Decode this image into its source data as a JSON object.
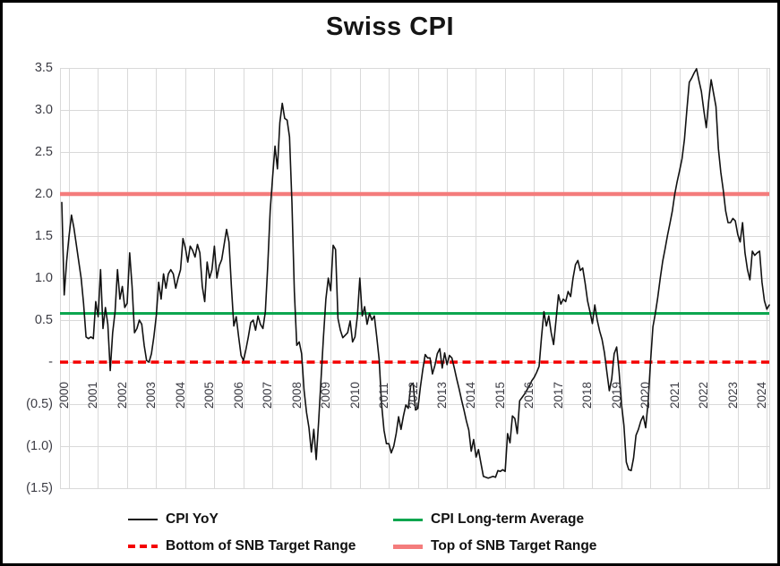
{
  "title": "Swiss CPI",
  "colors": {
    "cpi_yoy": "#121212",
    "long_term_average": "#0ca64f",
    "snb_bottom": "#f40000",
    "snb_top": "#f47c7c",
    "gridline": "#d9d9d9",
    "axis_text": "#3c3c44",
    "title_text": "#151515"
  },
  "y_axis": {
    "tick_labels": [
      "3.5",
      "3.0",
      "2.5",
      "2.0",
      "1.5",
      "1.0",
      "0.5",
      "-",
      "(0.5)",
      "(1.0)",
      "(1.5)"
    ],
    "tick_values": [
      3.5,
      3.0,
      2.5,
      2.0,
      1.5,
      1.0,
      0.5,
      0.0,
      -0.5,
      -1.0,
      -1.5
    ],
    "format": "accounting"
  },
  "x_axis": {
    "tick_labels": [
      "2000",
      "2001",
      "2002",
      "2003",
      "2004",
      "2005",
      "2006",
      "2007",
      "2008",
      "2009",
      "2010",
      "2011",
      "2012",
      "2013",
      "2014",
      "2015",
      "2016",
      "2017",
      "2018",
      "2019",
      "2020",
      "2021",
      "2022",
      "2023",
      "2024"
    ]
  },
  "legend": {
    "items": [
      {
        "label": "CPI YoY",
        "series": "cpi_yoy",
        "style": "thin-solid"
      },
      {
        "label": "CPI Long-term Average",
        "series": "long_term_average",
        "style": "solid"
      },
      {
        "label": "Bottom of SNB Target Range",
        "series": "snb_bottom",
        "style": "dashed"
      },
      {
        "label": "Top of SNB Target Range",
        "series": "snb_top",
        "style": "thick-solid"
      }
    ]
  },
  "chart_data": {
    "type": "line",
    "title": "Swiss CPI",
    "xlabel": "",
    "ylabel": "",
    "ylim": [
      -1.5,
      3.5
    ],
    "y_tick_step": 0.5,
    "grid": true,
    "legend_position": "bottom",
    "x": {
      "start": "2000-01",
      "end": "2024-05",
      "frequency": "monthly"
    },
    "x_tick_labels_years": [
      2000,
      2001,
      2002,
      2003,
      2004,
      2005,
      2006,
      2007,
      2008,
      2009,
      2010,
      2011,
      2012,
      2013,
      2014,
      2015,
      2016,
      2017,
      2018,
      2019,
      2020,
      2021,
      2022,
      2023,
      2024
    ],
    "series": [
      {
        "name": "CPI YoY",
        "type": "line",
        "color": "#121212",
        "values": [
          1.9,
          0.8,
          1.2,
          1.5,
          1.75,
          1.6,
          1.4,
          1.2,
          1.0,
          0.7,
          0.3,
          0.28,
          0.3,
          0.28,
          0.72,
          0.54,
          1.1,
          0.4,
          0.65,
          0.45,
          -0.1,
          0.35,
          0.6,
          1.1,
          0.75,
          0.9,
          0.65,
          0.7,
          1.3,
          0.9,
          0.35,
          0.4,
          0.5,
          0.45,
          0.2,
          0.02,
          0.0,
          0.1,
          0.3,
          0.55,
          0.95,
          0.75,
          1.05,
          0.88,
          1.05,
          1.1,
          1.05,
          0.88,
          1.0,
          1.1,
          1.47,
          1.36,
          1.19,
          1.38,
          1.33,
          1.25,
          1.4,
          1.3,
          0.9,
          0.72,
          1.19,
          1.0,
          1.1,
          1.38,
          1.0,
          1.15,
          1.22,
          1.4,
          1.58,
          1.43,
          0.9,
          0.43,
          0.54,
          0.3,
          0.08,
          0.02,
          0.15,
          0.3,
          0.47,
          0.5,
          0.38,
          0.55,
          0.45,
          0.4,
          0.6,
          1.15,
          1.8,
          2.2,
          2.57,
          2.3,
          2.85,
          3.08,
          2.9,
          2.88,
          2.68,
          1.9,
          0.84,
          0.2,
          0.24,
          0.1,
          -0.33,
          -0.6,
          -0.78,
          -1.07,
          -0.8,
          -1.16,
          -0.71,
          -0.2,
          0.3,
          0.75,
          1.0,
          0.85,
          1.39,
          1.34,
          0.52,
          0.38,
          0.29,
          0.32,
          0.35,
          0.49,
          0.24,
          0.3,
          0.55,
          1.0,
          0.55,
          0.66,
          0.45,
          0.58,
          0.5,
          0.55,
          0.3,
          0.03,
          -0.5,
          -0.81,
          -0.97,
          -0.97,
          -1.08,
          -1.0,
          -0.85,
          -0.65,
          -0.8,
          -0.64,
          -0.51,
          -0.55,
          -0.28,
          -0.25,
          -0.57,
          -0.55,
          -0.3,
          -0.09,
          0.09,
          0.05,
          0.05,
          -0.14,
          -0.04,
          0.1,
          0.16,
          -0.07,
          0.11,
          -0.03,
          0.08,
          0.05,
          -0.07,
          -0.2,
          -0.32,
          -0.45,
          -0.57,
          -0.7,
          -0.81,
          -1.06,
          -0.92,
          -1.13,
          -1.04,
          -1.2,
          -1.36,
          -1.37,
          -1.38,
          -1.37,
          -1.36,
          -1.37,
          -1.29,
          -1.3,
          -1.28,
          -1.3,
          -0.85,
          -0.96,
          -0.64,
          -0.67,
          -0.85,
          -0.46,
          -0.42,
          -0.38,
          -0.33,
          -0.28,
          -0.22,
          -0.18,
          -0.12,
          -0.05,
          0.3,
          0.6,
          0.43,
          0.55,
          0.35,
          0.21,
          0.5,
          0.8,
          0.69,
          0.75,
          0.72,
          0.84,
          0.78,
          1.0,
          1.16,
          1.21,
          1.09,
          1.12,
          0.94,
          0.73,
          0.6,
          0.46,
          0.68,
          0.5,
          0.37,
          0.27,
          0.11,
          -0.12,
          -0.34,
          -0.2,
          0.1,
          0.18,
          -0.11,
          -0.5,
          -0.75,
          -1.19,
          -1.28,
          -1.29,
          -1.14,
          -0.87,
          -0.8,
          -0.7,
          -0.64,
          -0.78,
          -0.48,
          0.0,
          0.42,
          0.58,
          0.77,
          1.0,
          1.2,
          1.35,
          1.51,
          1.65,
          1.8,
          2.0,
          2.15,
          2.28,
          2.42,
          2.65,
          3.0,
          3.33,
          3.38,
          3.44,
          3.49,
          3.35,
          3.22,
          2.99,
          2.79,
          3.11,
          3.36,
          3.2,
          3.04,
          2.54,
          2.26,
          2.05,
          1.8,
          1.66,
          1.66,
          1.71,
          1.68,
          1.52,
          1.43,
          1.66,
          1.3,
          1.1,
          0.98,
          1.32,
          1.27,
          1.3,
          1.32,
          0.95,
          0.73,
          0.63,
          0.68
        ]
      },
      {
        "name": "CPI Long-term Average",
        "type": "hline",
        "value": 0.58,
        "color": "#0ca64f",
        "line_style": "solid"
      },
      {
        "name": "Bottom of SNB Target Range",
        "type": "hline",
        "value": 0.0,
        "color": "#f40000",
        "line_style": "dashed"
      },
      {
        "name": "Top of SNB Target Range",
        "type": "hline",
        "value": 2.0,
        "color": "#f47c7c",
        "line_style": "thick-solid"
      }
    ]
  }
}
